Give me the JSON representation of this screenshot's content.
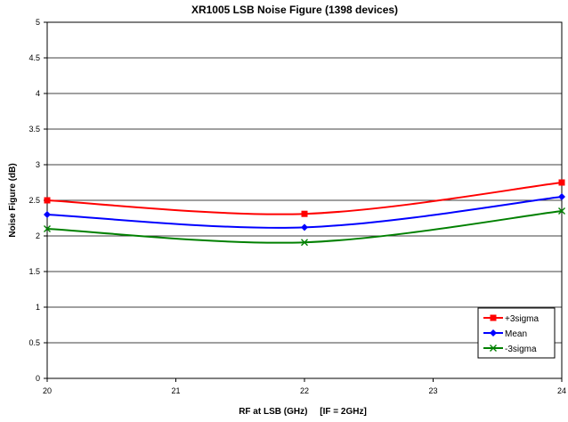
{
  "chart_data": {
    "type": "line",
    "title": "XR1005 LSB Noise Figure (1398 devices)",
    "xlabel": "RF at LSB (GHz)     [IF = 2GHz]",
    "ylabel": "Noise Figure (dB)",
    "xlim": [
      20,
      24
    ],
    "ylim": [
      0,
      5
    ],
    "xticks": [
      "20",
      "21",
      "22",
      "23",
      "24"
    ],
    "yticks": [
      "0",
      "0.5",
      "1",
      "1.5",
      "2",
      "2.5",
      "3",
      "3.5",
      "4",
      "4.5",
      "5"
    ],
    "x": [
      20,
      22,
      24
    ],
    "series": [
      {
        "name": "+3sigma",
        "values": [
          2.5,
          2.31,
          2.75
        ],
        "color": "#ff0000",
        "marker": "square"
      },
      {
        "name": "Mean",
        "values": [
          2.3,
          2.12,
          2.55
        ],
        "color": "#0000ff",
        "marker": "diamond"
      },
      {
        "name": "-3sigma",
        "values": [
          2.1,
          1.91,
          2.35
        ],
        "color": "#008000",
        "marker": "x"
      }
    ],
    "grid": "horizontal",
    "legend": "bottom-right",
    "smooth": true
  }
}
